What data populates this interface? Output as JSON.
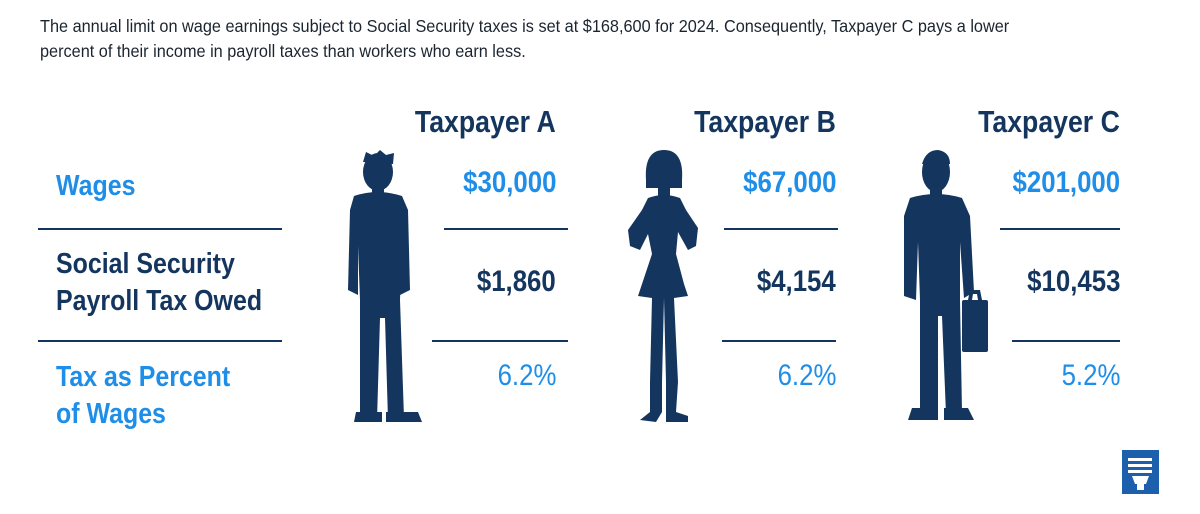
{
  "intro_text": "The annual limit on wage earnings subject to Social Security taxes is set at $168,600 for 2024. Consequently, Taxpayer C pays a lower percent of their income in payroll taxes than workers who earn less.",
  "row_labels": {
    "wages": "Wages",
    "tax_owed_line1": "Social Security",
    "tax_owed_line2": "Payroll Tax Owed",
    "percent_line1": "Tax as Percent",
    "percent_line2": "of Wages"
  },
  "taxpayers": [
    {
      "name": "Taxpayer A",
      "wages": "$30,000",
      "tax_owed": "$1,860",
      "percent": "6.2%",
      "figure_icon": "man-silhouette-icon"
    },
    {
      "name": "Taxpayer B",
      "wages": "$67,000",
      "tax_owed": "$4,154",
      "percent": "6.2%",
      "figure_icon": "woman-silhouette-icon"
    },
    {
      "name": "Taxpayer C",
      "wages": "$201,000",
      "tax_owed": "$10,453",
      "percent": "5.2%",
      "figure_icon": "businessman-with-briefcase-icon"
    }
  ],
  "logo_icon": "torch-logo-icon",
  "colors": {
    "navy": "#14355e",
    "blue": "#1f8ee8",
    "logo": "#1b5fad"
  }
}
